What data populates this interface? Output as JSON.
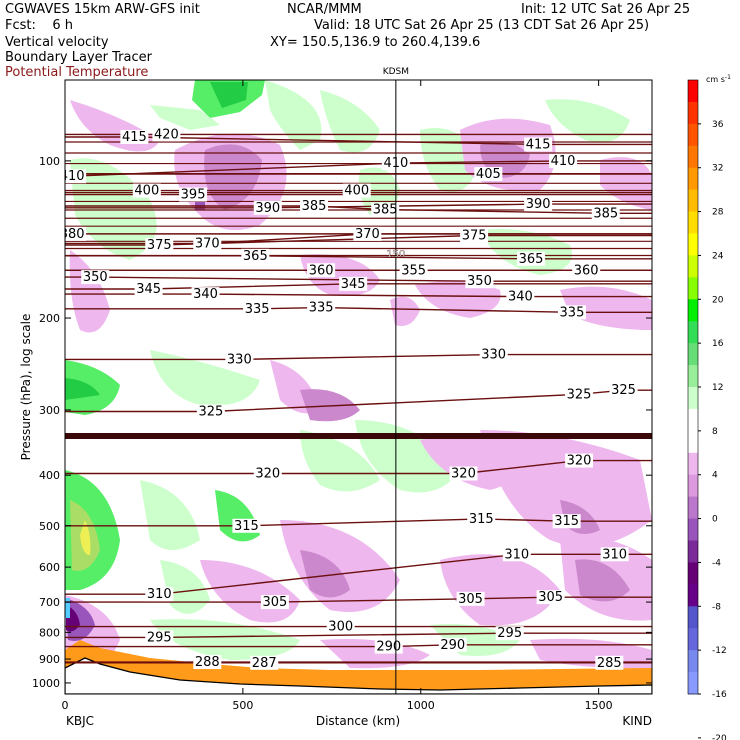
{
  "header": {
    "model_line": "CGWAVES 15km ARW-GFS init",
    "fcst_line": "Fcst:    6 h",
    "field1": "Vertical velocity",
    "field2": "Boundary Layer Tracer",
    "field3": "Potential Temperature",
    "center_org": "NCAR/MMM",
    "init_line": "Init: 12 UTC Sat 26 Apr 25",
    "valid_line": "Valid: 18 UTC Sat 26 Apr 25 (13 CDT Sat 26 Apr 25)",
    "xy_line": "XY= 150.5,136.9 to 260.4,139.6"
  },
  "chart_data": {
    "type": "heatmap",
    "xlabel": "Distance (km)",
    "ylabel": "Pressure (hPa), log scale",
    "x_range": [
      0,
      1650
    ],
    "y_range_hpa": [
      1050,
      70
    ],
    "log_scale_y": true,
    "x_ticks": [
      0,
      500,
      1000,
      1500
    ],
    "y_ticks": [
      100,
      200,
      300,
      400,
      500,
      600,
      700,
      800,
      900,
      1000
    ],
    "start_label": "KBJC",
    "end_label": "KIND",
    "station_marker": {
      "label": "KDSM",
      "x_km": 930
    },
    "tropopause_label": "150",
    "colorbar": {
      "unit": "cm s",
      "unit_exp": "-1",
      "ticks": [
        36,
        32,
        28,
        24,
        20,
        16,
        12,
        8,
        4,
        0,
        -4,
        -8,
        -12,
        -16,
        -20
      ],
      "colors": [
        "#ff0000",
        "#ff3300",
        "#ff5500",
        "#ff7700",
        "#ff9900",
        "#ffbb00",
        "#ffdd00",
        "#ffff00",
        "#ccff00",
        "#88ff00",
        "#00ee00",
        "#33dd55",
        "#66dd77",
        "#99ee99",
        "#ccffcc",
        "#ffffff",
        "#ffffff",
        "#eeb7ee",
        "#dd99dd",
        "#bb77cc",
        "#9955bb",
        "#7a2a99",
        "#660077",
        "#660088",
        "#5555cc",
        "#6666dd",
        "#7788ee",
        "#8899ff"
      ]
    },
    "theta_labels": [
      {
        "x": 195,
        "p": 90,
        "t": "415"
      },
      {
        "x": 285,
        "p": 89,
        "t": "420"
      },
      {
        "x": 1330,
        "p": 93,
        "t": "415"
      },
      {
        "x": 1400,
        "p": 100,
        "t": "410"
      },
      {
        "x": 20,
        "p": 107,
        "t": "410"
      },
      {
        "x": 930,
        "p": 101,
        "t": "410"
      },
      {
        "x": 1190,
        "p": 106,
        "t": "405"
      },
      {
        "x": 230,
        "p": 114,
        "t": "400"
      },
      {
        "x": 360,
        "p": 116,
        "t": "395"
      },
      {
        "x": 820,
        "p": 114,
        "t": "400"
      },
      {
        "x": 570,
        "p": 123,
        "t": "390"
      },
      {
        "x": 700,
        "p": 122,
        "t": "385"
      },
      {
        "x": 900,
        "p": 124,
        "t": "385"
      },
      {
        "x": 1330,
        "p": 121,
        "t": "390"
      },
      {
        "x": 1520,
        "p": 126,
        "t": "385"
      },
      {
        "x": 20,
        "p": 138,
        "t": "380"
      },
      {
        "x": 265,
        "p": 145,
        "t": "375"
      },
      {
        "x": 400,
        "p": 144,
        "t": "370"
      },
      {
        "x": 1150,
        "p": 139,
        "t": "375"
      },
      {
        "x": 850,
        "p": 138,
        "t": "370"
      },
      {
        "x": 535,
        "p": 152,
        "t": "365"
      },
      {
        "x": 1310,
        "p": 154,
        "t": "365"
      },
      {
        "x": 1465,
        "p": 162,
        "t": "360"
      },
      {
        "x": 720,
        "p": 162,
        "t": "360"
      },
      {
        "x": 980,
        "p": 162,
        "t": "355"
      },
      {
        "x": 85,
        "p": 167,
        "t": "350"
      },
      {
        "x": 1165,
        "p": 170,
        "t": "350"
      },
      {
        "x": 235,
        "p": 176,
        "t": "345"
      },
      {
        "x": 810,
        "p": 172,
        "t": "345"
      },
      {
        "x": 395,
        "p": 180,
        "t": "340"
      },
      {
        "x": 1280,
        "p": 182,
        "t": "340"
      },
      {
        "x": 540,
        "p": 192,
        "t": "335"
      },
      {
        "x": 720,
        "p": 191,
        "t": "335"
      },
      {
        "x": 1425,
        "p": 195,
        "t": "335"
      },
      {
        "x": 490,
        "p": 240,
        "t": "330"
      },
      {
        "x": 1205,
        "p": 235,
        "t": "330"
      },
      {
        "x": 410,
        "p": 302,
        "t": "325"
      },
      {
        "x": 1445,
        "p": 280,
        "t": "325"
      },
      {
        "x": 1570,
        "p": 275,
        "t": "325"
      },
      {
        "x": 570,
        "p": 397,
        "t": "320"
      },
      {
        "x": 1120,
        "p": 397,
        "t": "320"
      },
      {
        "x": 1445,
        "p": 375,
        "t": "320"
      },
      {
        "x": 510,
        "p": 500,
        "t": "315"
      },
      {
        "x": 1170,
        "p": 485,
        "t": "315"
      },
      {
        "x": 1410,
        "p": 490,
        "t": "315"
      },
      {
        "x": 1270,
        "p": 567,
        "t": "310"
      },
      {
        "x": 1545,
        "p": 567,
        "t": "310"
      },
      {
        "x": 265,
        "p": 676,
        "t": "310"
      },
      {
        "x": 590,
        "p": 700,
        "t": "305"
      },
      {
        "x": 1140,
        "p": 690,
        "t": "305"
      },
      {
        "x": 1365,
        "p": 685,
        "t": "305"
      },
      {
        "x": 775,
        "p": 780,
        "t": "300"
      },
      {
        "x": 265,
        "p": 818,
        "t": "295"
      },
      {
        "x": 1250,
        "p": 803,
        "t": "295"
      },
      {
        "x": 910,
        "p": 852,
        "t": "290"
      },
      {
        "x": 1090,
        "p": 845,
        "t": "290"
      },
      {
        "x": 400,
        "p": 912,
        "t": "288"
      },
      {
        "x": 560,
        "p": 915,
        "t": "287"
      },
      {
        "x": 1530,
        "p": 915,
        "t": "285"
      }
    ]
  }
}
